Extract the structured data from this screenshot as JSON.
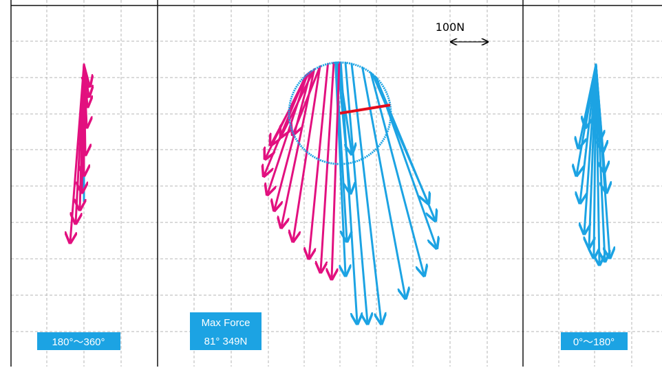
{
  "colors": {
    "blue": "#1ca3e3",
    "magenta": "#e2107f",
    "red": "#e30c1d",
    "grid": "#b5b5b5",
    "panel_border": "#111111",
    "label_bg": "#1ca3e3",
    "label_text": "#ffffff"
  },
  "scale_bar": {
    "label": "100N"
  },
  "labels": {
    "left_range": "180°～360°",
    "right_range": "0°～180°",
    "max_force_title": "Max Force",
    "max_force_value": "81° 349N"
  },
  "chart_data": {
    "type": "vector-polar",
    "title": "",
    "units": "N",
    "scale_reference_N": 100,
    "max_force": {
      "angle_deg": 81,
      "magnitude_N": 349
    },
    "center_vectors": [
      {
        "series": "0-180",
        "dx": 8,
        "dy": 235
      },
      {
        "series": "0-180",
        "dx": 10,
        "dy": 185
      },
      {
        "series": "0-180",
        "dx": 15,
        "dy": 115
      },
      {
        "series": "0-180",
        "dx": 17,
        "dy": 58
      },
      {
        "series": "0-180",
        "dx": 25,
        "dy": 305
      },
      {
        "series": "0-180",
        "dx": 40,
        "dy": 305
      },
      {
        "series": "0-180",
        "dx": 60,
        "dy": 305
      },
      {
        "series": "0-180",
        "dx": 95,
        "dy": 268
      },
      {
        "series": "0-180",
        "dx": 122,
        "dy": 235
      },
      {
        "series": "0-180",
        "dx": 140,
        "dy": 195
      },
      {
        "series": "0-180",
        "dx": 138,
        "dy": 155
      },
      {
        "series": "0-180",
        "dx": 128,
        "dy": 130
      },
      {
        "series": "180-360",
        "dx": -12,
        "dy": 240
      },
      {
        "series": "180-360",
        "dx": -28,
        "dy": 230
      },
      {
        "series": "180-360",
        "dx": -45,
        "dy": 210
      },
      {
        "series": "180-360",
        "dx": -68,
        "dy": 185
      },
      {
        "series": "180-360",
        "dx": -85,
        "dy": 165
      },
      {
        "series": "180-360",
        "dx": -95,
        "dy": 140
      },
      {
        "series": "180-360",
        "dx": -105,
        "dy": 117
      },
      {
        "series": "180-360",
        "dx": -110,
        "dy": 90
      },
      {
        "series": "180-360",
        "dx": -108,
        "dy": 65
      },
      {
        "series": "180-360",
        "dx": -100,
        "dy": 45
      },
      {
        "series": "180-360",
        "dx": -85,
        "dy": 33
      },
      {
        "series": "180-360",
        "dx": -68,
        "dy": 30
      }
    ],
    "left_vectors": [
      {
        "dx": 8,
        "dy": 30
      },
      {
        "dx": 7,
        "dy": 45
      },
      {
        "dx": 5,
        "dy": 60
      },
      {
        "dx": 4,
        "dy": 90
      },
      {
        "dx": 2,
        "dy": 130
      },
      {
        "dx": 0,
        "dy": 160
      },
      {
        "dx": -3,
        "dy": 185
      },
      {
        "dx": -6,
        "dy": 210
      },
      {
        "dx": -12,
        "dy": 230
      },
      {
        "dx": -20,
        "dy": 258
      }
    ],
    "right_vectors": [
      {
        "dx": 5,
        "dy": 110
      },
      {
        "dx": 10,
        "dy": 125
      },
      {
        "dx": 12,
        "dy": 155
      },
      {
        "dx": 15,
        "dy": 185
      },
      {
        "dx": 20,
        "dy": 280
      },
      {
        "dx": 13,
        "dy": 285
      },
      {
        "dx": 5,
        "dy": 290
      },
      {
        "dx": -3,
        "dy": 280
      },
      {
        "dx": -10,
        "dy": 265
      },
      {
        "dx": -17,
        "dy": 245
      },
      {
        "dx": -23,
        "dy": 200
      },
      {
        "dx": -28,
        "dy": 160
      },
      {
        "dx": -25,
        "dy": 120
      },
      {
        "dx": -15,
        "dy": 90
      }
    ]
  }
}
